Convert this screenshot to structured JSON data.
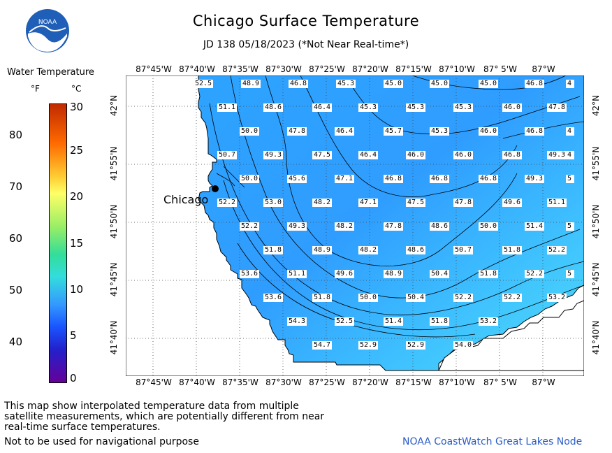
{
  "header": {
    "title": "Chicago Surface Temperature",
    "subtitle": "JD 138 05/18/2023 (*Not Near Real-time*)",
    "logo_text": "NOAA"
  },
  "legend": {
    "title": "Water Temperature",
    "unit_f": "°F",
    "unit_c": "°C",
    "ticks_f": [
      "80",
      "70",
      "60",
      "50",
      "40"
    ],
    "ticks_c": [
      "30",
      "25",
      "20",
      "15",
      "10",
      "5",
      "0"
    ],
    "colors": [
      "#ff0000",
      "#ff8800",
      "#ffff66",
      "#66ee66",
      "#33dddd",
      "#3399ff",
      "#0033ff",
      "#660099"
    ]
  },
  "map": {
    "city_label": "Chicago",
    "lon_labels": [
      "87°45'W",
      "87°40'W",
      "87°35'W",
      "87°30'W",
      "87°25'W",
      "87°20'W",
      "87°15'W",
      "87°10'W",
      "87° 5'W",
      "87°W"
    ],
    "lat_labels": [
      "42°N",
      "41°55'N",
      "41°50'N",
      "41°45'N",
      "41°40'N"
    ],
    "water_color": "#33ccff",
    "values": [
      {
        "row": 0,
        "cells": [
          "52.5",
          "48.9",
          "46.8",
          "45.3",
          "45.0",
          "45.0",
          "45.0",
          "46.8",
          "4"
        ]
      },
      {
        "row": 1,
        "cells": [
          "51.1",
          "48.6",
          "46.4",
          "45.3",
          "45.3",
          "45.3",
          "46.0",
          "47.8"
        ]
      },
      {
        "row": 2,
        "cells": [
          "50.0",
          "47.8",
          "46.4",
          "45.7",
          "45.3",
          "46.0",
          "46.8",
          "4"
        ]
      },
      {
        "row": 3,
        "cells": [
          "50.7",
          "49.3",
          "47.5",
          "46.4",
          "46.0",
          "46.0",
          "46.8",
          "49.3",
          "4"
        ]
      },
      {
        "row": 4,
        "cells": [
          "50.0",
          "45.6",
          "47.1",
          "46.8",
          "46.8",
          "46.8",
          "49.3",
          "5"
        ]
      },
      {
        "row": 5,
        "cells": [
          "52.2",
          "53.0",
          "48.2",
          "47.1",
          "47.5",
          "47.8",
          "49.6",
          "51.1"
        ]
      },
      {
        "row": 6,
        "cells": [
          "52.2",
          "49.3",
          "48.2",
          "47.8",
          "48.6",
          "50.0",
          "51.4",
          "5"
        ]
      },
      {
        "row": 7,
        "cells": [
          "51.8",
          "48.9",
          "48.2",
          "48.6",
          "50.7",
          "51.8",
          "52.2"
        ]
      },
      {
        "row": 8,
        "cells": [
          "53.6",
          "51.1",
          "49.6",
          "48.9",
          "50.4",
          "51.8",
          "52.2",
          "5"
        ]
      },
      {
        "row": 9,
        "cells": [
          "53.6",
          "51.8",
          "50.0",
          "50.4",
          "52.2",
          "52.2",
          "53.2"
        ]
      },
      {
        "row": 10,
        "cells": [
          "54.3",
          "52.5",
          "51.4",
          "51.8",
          "53.2"
        ]
      },
      {
        "row": 11,
        "cells": [
          "54.7",
          "52.9",
          "52.9",
          "54.0"
        ]
      }
    ]
  },
  "footer": {
    "disclaimer": "This map show interpolated temperature data from multiple satellite measurements, which are potentially different from near real-time surface temperatures.",
    "nav_note": "Not to be used for navigational purpose",
    "credit": "NOAA CoastWatch Great Lakes Node"
  }
}
